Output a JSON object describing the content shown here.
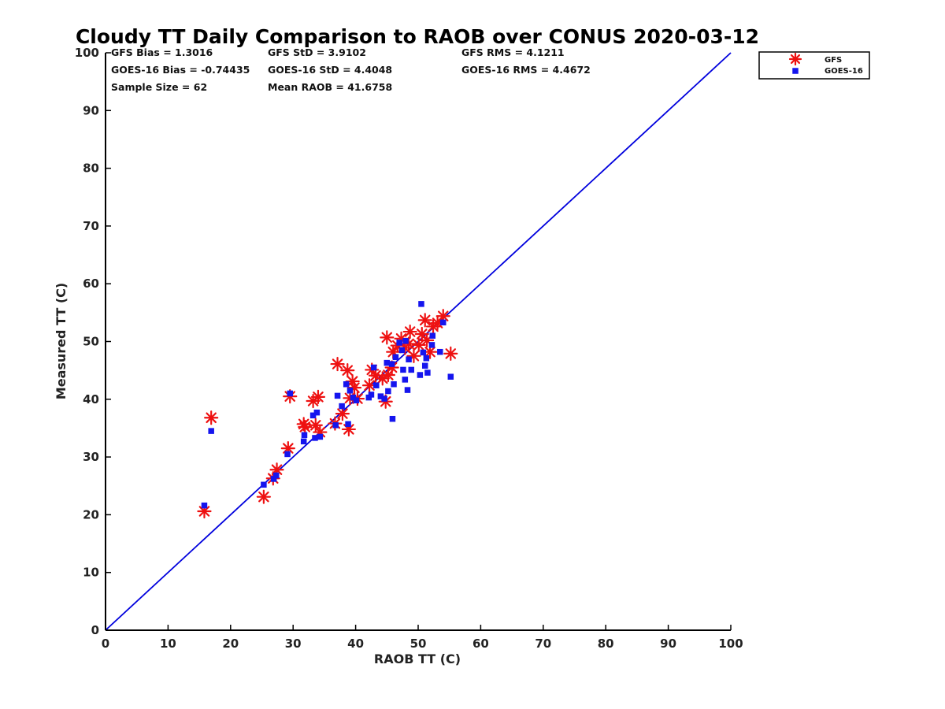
{
  "chart_data": {
    "type": "scatter",
    "title": "Cloudy TT Daily Comparison to RAOB over CONUS 2020-03-12",
    "xlabel": "RAOB TT (C)",
    "ylabel": "Measured TT (C)",
    "xlim": [
      0,
      100
    ],
    "ylim": [
      0,
      100
    ],
    "xticks": [
      "0",
      "10",
      "20",
      "30",
      "40",
      "50",
      "60",
      "70",
      "80",
      "90",
      "100"
    ],
    "yticks": [
      "0",
      "10",
      "20",
      "30",
      "40",
      "50",
      "60",
      "70",
      "80",
      "90",
      "100"
    ],
    "grid": false,
    "legend_position": "top-right-outside",
    "reference_line": {
      "from": [
        0,
        0
      ],
      "to": [
        100,
        100
      ],
      "color": "#0000dd"
    },
    "stats": [
      {
        "text": "GFS Bias = 1.3016"
      },
      {
        "text": "GFS StD = 3.9102"
      },
      {
        "text": "GFS RMS = 4.1211"
      },
      {
        "text": "GOES-16 Bias = -0.74435"
      },
      {
        "text": "GOES-16 StD = 4.4048"
      },
      {
        "text": "GOES-16 RMS = 4.4672"
      },
      {
        "text": "Sample Size = 62"
      },
      {
        "text": "Mean RAOB = 41.6758"
      }
    ],
    "series": [
      {
        "name": "GFS",
        "marker": "asterisk",
        "color": "#ee1111",
        "points": [
          [
            15.8,
            20.6
          ],
          [
            16.9,
            36.8
          ],
          [
            25.3,
            23.1
          ],
          [
            26.8,
            26.3
          ],
          [
            27.4,
            27.8
          ],
          [
            29.2,
            31.5
          ],
          [
            29.5,
            40.5
          ],
          [
            31.7,
            35.7
          ],
          [
            31.9,
            35.2
          ],
          [
            33.2,
            39.7
          ],
          [
            33.6,
            35.5
          ],
          [
            34.0,
            40.4
          ],
          [
            34.3,
            34.3
          ],
          [
            36.7,
            35.8
          ],
          [
            37.1,
            46.1
          ],
          [
            37.9,
            37.5
          ],
          [
            38.7,
            45.0
          ],
          [
            38.9,
            34.8
          ],
          [
            39.1,
            40.2
          ],
          [
            39.5,
            43.1
          ],
          [
            39.8,
            42.0
          ],
          [
            40.3,
            40.1
          ],
          [
            42.2,
            42.4
          ],
          [
            42.6,
            45.1
          ],
          [
            43.2,
            44.1
          ],
          [
            44.3,
            43.6
          ],
          [
            44.8,
            39.6
          ],
          [
            45.0,
            50.7
          ],
          [
            45.2,
            44.2
          ],
          [
            45.8,
            45.5
          ],
          [
            46.0,
            48.2
          ],
          [
            46.7,
            49.3
          ],
          [
            47.3,
            50.5
          ],
          [
            47.9,
            48.9
          ],
          [
            48.5,
            49.6
          ],
          [
            48.7,
            51.7
          ],
          [
            49.3,
            47.5
          ],
          [
            50.1,
            49.4
          ],
          [
            50.6,
            51.3
          ],
          [
            51.1,
            53.7
          ],
          [
            51.4,
            50.2
          ],
          [
            51.9,
            48.2
          ],
          [
            52.4,
            52.6
          ],
          [
            53.1,
            53.2
          ],
          [
            54.0,
            54.4
          ],
          [
            55.2,
            47.9
          ]
        ]
      },
      {
        "name": "GOES-16",
        "marker": "square",
        "color": "#1515ee",
        "points": [
          [
            15.8,
            21.6
          ],
          [
            16.9,
            34.5
          ],
          [
            25.3,
            25.2
          ],
          [
            26.9,
            26.2
          ],
          [
            27.3,
            26.8
          ],
          [
            29.1,
            30.5
          ],
          [
            29.5,
            41.0
          ],
          [
            31.7,
            32.7
          ],
          [
            31.8,
            33.8
          ],
          [
            33.2,
            37.2
          ],
          [
            33.5,
            33.3
          ],
          [
            33.8,
            37.7
          ],
          [
            34.3,
            33.5
          ],
          [
            36.8,
            35.5
          ],
          [
            37.1,
            40.6
          ],
          [
            37.8,
            38.8
          ],
          [
            38.5,
            42.6
          ],
          [
            38.8,
            35.7
          ],
          [
            39.1,
            41.5
          ],
          [
            39.6,
            40.3
          ],
          [
            40.1,
            39.8
          ],
          [
            42.1,
            40.3
          ],
          [
            42.5,
            40.8
          ],
          [
            42.9,
            45.5
          ],
          [
            43.3,
            42.4
          ],
          [
            44.0,
            40.5
          ],
          [
            44.6,
            40.1
          ],
          [
            45.0,
            46.3
          ],
          [
            45.2,
            41.4
          ],
          [
            45.8,
            46.1
          ],
          [
            45.9,
            36.6
          ],
          [
            46.1,
            42.6
          ],
          [
            46.4,
            47.3
          ],
          [
            47.0,
            49.8
          ],
          [
            47.4,
            48.5
          ],
          [
            47.6,
            45.1
          ],
          [
            47.9,
            43.4
          ],
          [
            48.0,
            50.1
          ],
          [
            48.3,
            41.6
          ],
          [
            48.5,
            46.9
          ],
          [
            48.9,
            45.1
          ],
          [
            50.3,
            44.2
          ],
          [
            50.5,
            56.5
          ],
          [
            50.8,
            48.1
          ],
          [
            51.1,
            45.8
          ],
          [
            51.3,
            47.1
          ],
          [
            51.5,
            44.6
          ],
          [
            52.2,
            49.4
          ],
          [
            52.3,
            51.0
          ],
          [
            53.5,
            48.2
          ],
          [
            54.0,
            53.3
          ],
          [
            55.2,
            43.9
          ]
        ]
      }
    ]
  }
}
